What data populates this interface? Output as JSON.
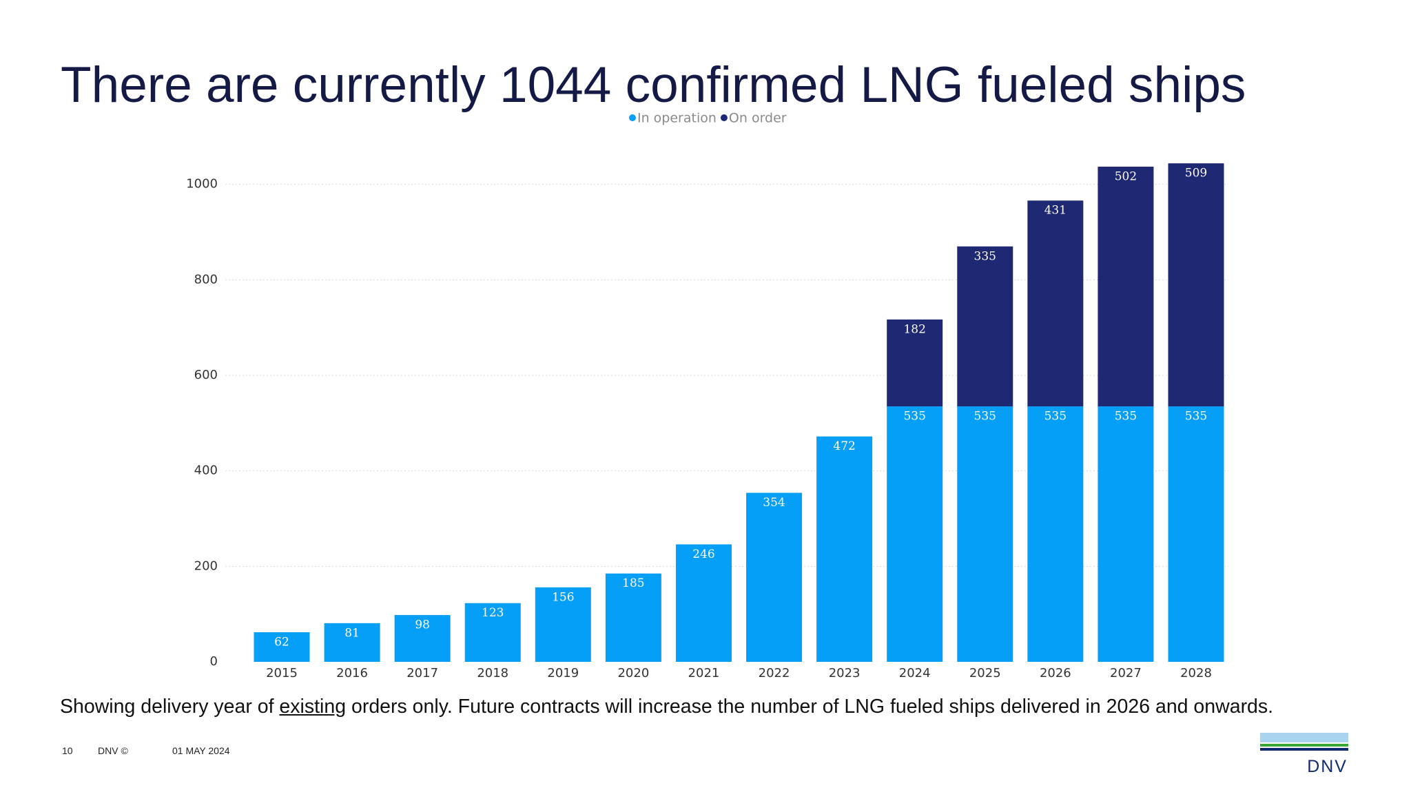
{
  "chart_data": {
    "type": "bar",
    "stacked": true,
    "title": "There are currently 1044 confirmed LNG fueled ships",
    "categories": [
      "2015",
      "2016",
      "2017",
      "2018",
      "2019",
      "2020",
      "2021",
      "2022",
      "2023",
      "2024",
      "2025",
      "2026",
      "2027",
      "2028"
    ],
    "series": [
      {
        "name": "In operation",
        "color": "#069ff8",
        "values": [
          62,
          81,
          98,
          123,
          156,
          185,
          246,
          354,
          472,
          535,
          535,
          535,
          535,
          535
        ]
      },
      {
        "name": "On order",
        "color": "#1f2873",
        "values": [
          null,
          null,
          null,
          null,
          null,
          null,
          null,
          null,
          null,
          182,
          335,
          431,
          502,
          509
        ]
      }
    ],
    "ylim": [
      0,
      1050
    ],
    "yticks": [
      0,
      200,
      400,
      600,
      800,
      1000
    ],
    "grid": true,
    "legend": "top"
  },
  "note": {
    "before": "Showing delivery year of ",
    "underlined": "existing",
    "after": " orders only. Future contracts will increase the number of LNG fueled ships delivered in 2026 and onwards."
  },
  "footer": {
    "page": "10",
    "owner": "DNV ©",
    "date": "01 MAY 2024",
    "logo": "DNV"
  }
}
